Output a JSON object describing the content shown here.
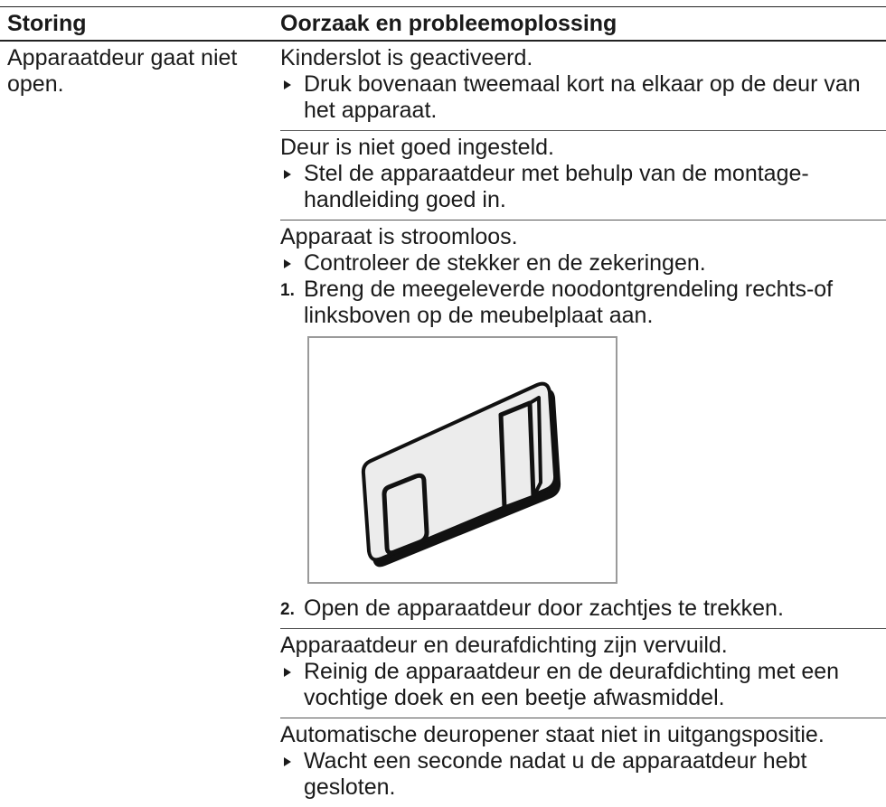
{
  "table": {
    "headers": [
      "Storing",
      "Oorzaak en probleemoplossing"
    ],
    "rows": [
      {
        "fault": "Apparaatdeur gaat niet open.",
        "causes": [
          {
            "cause": "Kinderslot is geactiveerd.",
            "steps": [
              {
                "text": "Druk bovenaan tweemaal kort na elkaar op de deur van het apparaat."
              }
            ]
          },
          {
            "cause": "Deur is niet goed ingesteld.",
            "steps": [
              {
                "text": "Stel de apparaatdeur met behulp van de montage-handleiding goed in."
              }
            ]
          },
          {
            "cause": "Apparaat is stroomloos.",
            "steps": [
              {
                "text": "Controleer de stekker en de zekeringen."
              },
              {
                "number": "1.",
                "text": "Breng de meegeleverde noodontgrendeling rechts-of linksboven op de meubelplaat aan."
              },
              {
                "number": "2.",
                "text": "Open de apparaatdeur door zachtjes te trekken."
              }
            ]
          },
          {
            "cause": "Apparaatdeur en deurafdichting zijn vervuild.",
            "steps": [
              {
                "text": "Reinig de apparaatdeur en de deurafdichting met een vochtige doek en een beetje afwasmiddel."
              }
            ]
          },
          {
            "cause": "Automatische deuropener staat niet in uitgangspositie.",
            "steps": [
              {
                "text": "Wacht een seconde nadat u de apparaatdeur hebt gesloten."
              }
            ]
          }
        ]
      }
    ]
  }
}
